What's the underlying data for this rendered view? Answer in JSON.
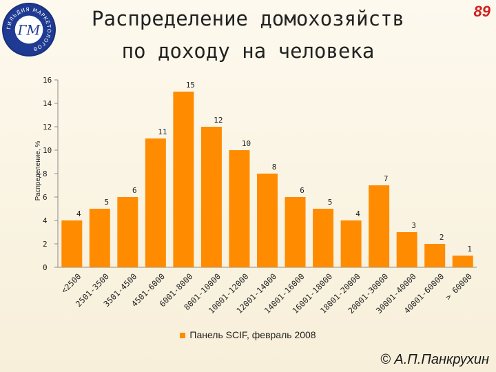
{
  "header": {
    "title_line1": "Распределение домохозяйств",
    "title_line2": "по доходу на человека",
    "page_number": "89",
    "logo_text": "ГИЛЬДИЯ МАРКЕТОЛОГОВ",
    "logo_monogram": "ГМ"
  },
  "footer": {
    "credit": "© А.П.Панкрухин"
  },
  "colors": {
    "bar": "#ff8c00",
    "title_accent": "#d21f1f",
    "logo": "#1f3a93"
  },
  "chart_data": {
    "type": "bar",
    "categories": [
      "<2500",
      "2501-3500",
      "3501-4500",
      "4501-6000",
      "6001-8000",
      "8001-10000",
      "10001-12000",
      "12001-14000",
      "14001-16000",
      "16001-18000",
      "18001-20000",
      "20001-30000",
      "30001-40000",
      "40001-60000",
      "> 60000"
    ],
    "series": [
      {
        "name": "Панель SCIF, февраль 2008",
        "values": [
          4,
          5,
          6,
          11,
          15,
          12,
          10,
          8,
          6,
          5,
          4,
          7,
          3,
          2,
          1
        ]
      }
    ],
    "ylabel": "Распределение, %",
    "xlabel": "",
    "ylim": [
      0,
      16
    ],
    "yticks": [
      0,
      2,
      4,
      6,
      8,
      10,
      12,
      14,
      16
    ],
    "grid": false,
    "legend": "bottom"
  }
}
